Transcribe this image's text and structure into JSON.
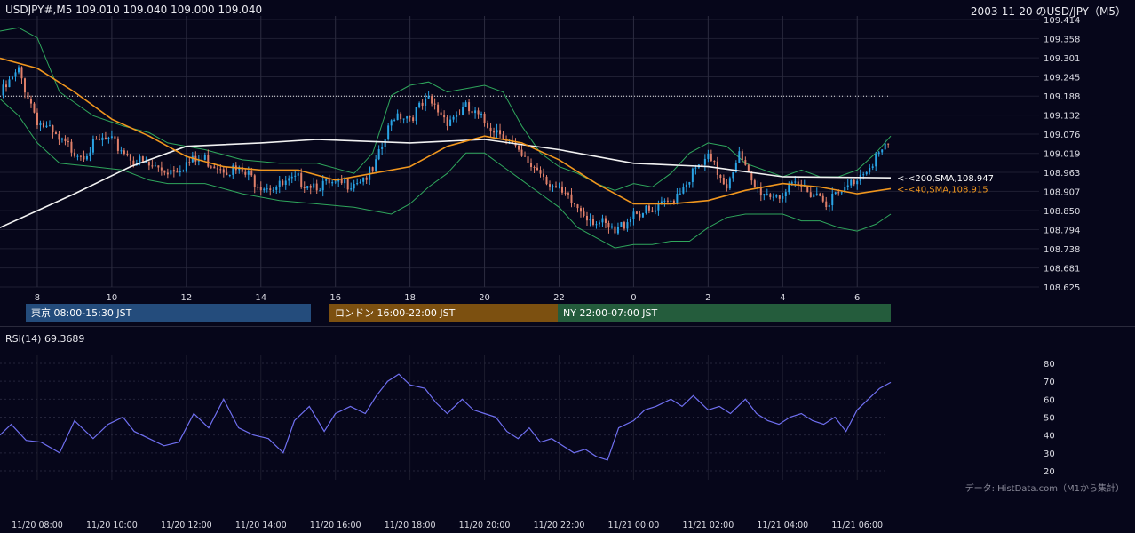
{
  "header": {
    "symbol_ohlc": "USDJPY#,M5 109.010 109.040 109.000 109.040",
    "date_title": "2003-11-20 のUSD/JPY（M5）"
  },
  "sessions": [
    {
      "label": "東京 08:00-15:30 JST",
      "color": "#244c7c"
    },
    {
      "label": "ロンドン 16:00-22:00 JST",
      "color": "#7c5010"
    },
    {
      "label": "NY 22:00-07:00 JST",
      "color": "#245c3c"
    }
  ],
  "rsi": {
    "label": "RSI(14) 69.3689"
  },
  "credit": "データ: HistData.com（M1から集計）",
  "colors": {
    "background": "#06061a",
    "up_candle": "#2aa4e6",
    "down_candle": "#e0806a",
    "sma200": "#f2f2f2",
    "sma40": "#f0961e",
    "bollinger": "#2fa65c",
    "rsi_line": "#6f6ff0",
    "grid": "#1f1f33"
  },
  "chart_data": [
    {
      "type": "candlestick",
      "title": "USDJPY#,M5 109.010 109.040 109.000 109.040",
      "y_ticks": [
        "108.625",
        "108.681",
        "108.738",
        "108.794",
        "108.850",
        "108.907",
        "108.963",
        "109.019",
        "109.076",
        "109.132",
        "109.188",
        "109.245",
        "109.301",
        "109.358",
        "109.414"
      ],
      "ylim": [
        108.625,
        109.414
      ],
      "x_ticks": [
        "8",
        "10",
        "12",
        "14",
        "16",
        "18",
        "20",
        "22",
        "0",
        "2",
        "4",
        "6"
      ],
      "x_range_hours": [
        7.0,
        30.9
      ],
      "dotted_level": 109.188,
      "overlays": [
        {
          "name": "200,SMA",
          "value": 108.947,
          "label": "<-<200,SMA,108.947"
        },
        {
          "name": "40,SMA",
          "value": 108.915,
          "label": "<-<40,SMA,108.915"
        }
      ],
      "close_path": [
        [
          7.0,
          109.19
        ],
        [
          7.5,
          109.26
        ],
        [
          8.0,
          109.12
        ],
        [
          8.6,
          109.05
        ],
        [
          9.2,
          109.02
        ],
        [
          9.8,
          109.06
        ],
        [
          10.3,
          109.03
        ],
        [
          10.6,
          109.0
        ],
        [
          11.0,
          108.98
        ],
        [
          11.5,
          108.97
        ],
        [
          12.0,
          108.99
        ],
        [
          12.5,
          109.0
        ],
        [
          13.0,
          108.98
        ],
        [
          13.5,
          108.96
        ],
        [
          14.0,
          108.93
        ],
        [
          14.5,
          108.92
        ],
        [
          15.0,
          108.94
        ],
        [
          15.5,
          108.93
        ],
        [
          16.0,
          108.92
        ],
        [
          16.5,
          108.94
        ],
        [
          17.0,
          108.96
        ],
        [
          17.3,
          109.05
        ],
        [
          17.6,
          109.14
        ],
        [
          18.0,
          109.13
        ],
        [
          18.5,
          109.17
        ],
        [
          19.0,
          109.12
        ],
        [
          19.5,
          109.15
        ],
        [
          20.0,
          109.11
        ],
        [
          20.5,
          109.08
        ],
        [
          21.0,
          109.0
        ],
        [
          21.5,
          108.97
        ],
        [
          22.0,
          108.9
        ],
        [
          22.5,
          108.86
        ],
        [
          23.0,
          108.82
        ],
        [
          23.5,
          108.78
        ],
        [
          24.0,
          108.85
        ],
        [
          24.5,
          108.84
        ],
        [
          25.0,
          108.88
        ],
        [
          25.5,
          108.95
        ],
        [
          26.0,
          109.0
        ],
        [
          26.5,
          108.93
        ],
        [
          26.8,
          109.02
        ],
        [
          27.2,
          108.92
        ],
        [
          27.6,
          108.9
        ],
        [
          28.0,
          108.9
        ],
        [
          28.4,
          108.92
        ],
        [
          28.8,
          108.91
        ],
        [
          29.2,
          108.88
        ],
        [
          29.6,
          108.9
        ],
        [
          30.0,
          108.95
        ],
        [
          30.5,
          109.01
        ],
        [
          30.9,
          109.04
        ]
      ],
      "sma200_path": [
        [
          7.0,
          108.8
        ],
        [
          9.0,
          108.9
        ],
        [
          10.5,
          108.98
        ],
        [
          12.0,
          109.04
        ],
        [
          14.0,
          109.05
        ],
        [
          15.5,
          109.06
        ],
        [
          18.0,
          109.05
        ],
        [
          20.0,
          109.06
        ],
        [
          22.0,
          109.03
        ],
        [
          24.0,
          108.99
        ],
        [
          26.0,
          108.98
        ],
        [
          28.0,
          108.95
        ],
        [
          30.9,
          108.947
        ]
      ],
      "sma40_path": [
        [
          7.0,
          109.3
        ],
        [
          8.0,
          109.27
        ],
        [
          9.0,
          109.2
        ],
        [
          10.0,
          109.12
        ],
        [
          11.0,
          109.07
        ],
        [
          12.0,
          109.01
        ],
        [
          13.0,
          108.98
        ],
        [
          14.0,
          108.97
        ],
        [
          15.0,
          108.97
        ],
        [
          16.0,
          108.94
        ],
        [
          17.0,
          108.96
        ],
        [
          18.0,
          108.98
        ],
        [
          19.0,
          109.04
        ],
        [
          20.0,
          109.07
        ],
        [
          21.0,
          109.05
        ],
        [
          22.0,
          109.0
        ],
        [
          23.0,
          108.93
        ],
        [
          24.0,
          108.87
        ],
        [
          25.0,
          108.87
        ],
        [
          26.0,
          108.88
        ],
        [
          27.0,
          108.91
        ],
        [
          28.0,
          108.93
        ],
        [
          29.0,
          108.92
        ],
        [
          30.0,
          108.9
        ],
        [
          30.9,
          108.915
        ]
      ],
      "bb_upper_path": [
        [
          7.0,
          109.38
        ],
        [
          7.5,
          109.39
        ],
        [
          8.0,
          109.36
        ],
        [
          8.6,
          109.2
        ],
        [
          9.5,
          109.13
        ],
        [
          10.3,
          109.1
        ],
        [
          11.0,
          109.08
        ],
        [
          11.5,
          109.05
        ],
        [
          12.5,
          109.03
        ],
        [
          13.5,
          109.0
        ],
        [
          14.5,
          108.99
        ],
        [
          15.5,
          108.99
        ],
        [
          16.5,
          108.96
        ],
        [
          17.0,
          109.02
        ],
        [
          17.5,
          109.19
        ],
        [
          18.0,
          109.22
        ],
        [
          18.5,
          109.23
        ],
        [
          19.0,
          109.2
        ],
        [
          19.5,
          109.21
        ],
        [
          20.0,
          109.22
        ],
        [
          20.5,
          109.2
        ],
        [
          21.0,
          109.1
        ],
        [
          21.5,
          109.02
        ],
        [
          22.0,
          108.98
        ],
        [
          22.5,
          108.96
        ],
        [
          23.0,
          108.93
        ],
        [
          23.5,
          108.91
        ],
        [
          24.0,
          108.93
        ],
        [
          24.5,
          108.92
        ],
        [
          25.0,
          108.96
        ],
        [
          25.5,
          109.02
        ],
        [
          26.0,
          109.05
        ],
        [
          26.5,
          109.04
        ],
        [
          27.0,
          108.99
        ],
        [
          27.5,
          108.97
        ],
        [
          28.0,
          108.95
        ],
        [
          28.5,
          108.97
        ],
        [
          29.0,
          108.95
        ],
        [
          29.5,
          108.95
        ],
        [
          30.0,
          108.97
        ],
        [
          30.5,
          109.02
        ],
        [
          30.9,
          109.07
        ]
      ],
      "bb_lower_path": [
        [
          7.0,
          109.18
        ],
        [
          7.5,
          109.13
        ],
        [
          8.0,
          109.05
        ],
        [
          8.6,
          108.99
        ],
        [
          9.5,
          108.98
        ],
        [
          10.3,
          108.97
        ],
        [
          11.0,
          108.94
        ],
        [
          11.5,
          108.93
        ],
        [
          12.5,
          108.93
        ],
        [
          13.5,
          108.9
        ],
        [
          14.5,
          108.88
        ],
        [
          15.5,
          108.87
        ],
        [
          16.5,
          108.86
        ],
        [
          17.0,
          108.85
        ],
        [
          17.5,
          108.84
        ],
        [
          18.0,
          108.87
        ],
        [
          18.5,
          108.92
        ],
        [
          19.0,
          108.96
        ],
        [
          19.5,
          109.02
        ],
        [
          20.0,
          109.02
        ],
        [
          20.5,
          108.98
        ],
        [
          21.0,
          108.94
        ],
        [
          21.5,
          108.9
        ],
        [
          22.0,
          108.86
        ],
        [
          22.5,
          108.8
        ],
        [
          23.0,
          108.77
        ],
        [
          23.5,
          108.74
        ],
        [
          24.0,
          108.75
        ],
        [
          24.5,
          108.75
        ],
        [
          25.0,
          108.76
        ],
        [
          25.5,
          108.76
        ],
        [
          26.0,
          108.8
        ],
        [
          26.5,
          108.83
        ],
        [
          27.0,
          108.84
        ],
        [
          27.5,
          108.84
        ],
        [
          28.0,
          108.84
        ],
        [
          28.5,
          108.82
        ],
        [
          29.0,
          108.82
        ],
        [
          29.5,
          108.8
        ],
        [
          30.0,
          108.79
        ],
        [
          30.5,
          108.81
        ],
        [
          30.9,
          108.84
        ]
      ]
    },
    {
      "type": "line",
      "title": "RSI(14) 69.3689",
      "y_ticks": [
        20,
        30,
        40,
        50,
        60,
        70,
        80
      ],
      "ylim": [
        20,
        80
      ],
      "x_ticks": [
        "11/20 08:00",
        "11/20 10:00",
        "11/20 12:00",
        "11/20 14:00",
        "11/20 16:00",
        "11/20 18:00",
        "11/20 20:00",
        "11/20 22:00",
        "11/21 00:00",
        "11/21 02:00",
        "11/21 04:00",
        "11/21 06:00"
      ],
      "series": [
        {
          "points": [
            [
              7.0,
              40
            ],
            [
              7.3,
              46
            ],
            [
              7.7,
              37
            ],
            [
              8.1,
              36
            ],
            [
              8.6,
              30
            ],
            [
              9.0,
              48
            ],
            [
              9.5,
              38
            ],
            [
              9.9,
              46
            ],
            [
              10.3,
              50
            ],
            [
              10.6,
              42
            ],
            [
              11.0,
              38
            ],
            [
              11.4,
              34
            ],
            [
              11.8,
              36
            ],
            [
              12.2,
              52
            ],
            [
              12.6,
              44
            ],
            [
              13.0,
              60
            ],
            [
              13.4,
              44
            ],
            [
              13.8,
              40
            ],
            [
              14.2,
              38
            ],
            [
              14.6,
              30
            ],
            [
              14.9,
              48
            ],
            [
              15.3,
              56
            ],
            [
              15.7,
              42
            ],
            [
              16.0,
              52
            ],
            [
              16.4,
              56
            ],
            [
              16.8,
              52
            ],
            [
              17.1,
              62
            ],
            [
              17.4,
              70
            ],
            [
              17.7,
              74
            ],
            [
              18.0,
              68
            ],
            [
              18.4,
              66
            ],
            [
              18.7,
              58
            ],
            [
              19.0,
              52
            ],
            [
              19.4,
              60
            ],
            [
              19.7,
              54
            ],
            [
              20.0,
              52
            ],
            [
              20.3,
              50
            ],
            [
              20.6,
              42
            ],
            [
              20.9,
              38
            ],
            [
              21.2,
              44
            ],
            [
              21.5,
              36
            ],
            [
              21.8,
              38
            ],
            [
              22.1,
              34
            ],
            [
              22.4,
              30
            ],
            [
              22.7,
              32
            ],
            [
              23.0,
              28
            ],
            [
              23.3,
              26
            ],
            [
              23.6,
              44
            ],
            [
              24.0,
              48
            ],
            [
              24.3,
              54
            ],
            [
              24.6,
              56
            ],
            [
              25.0,
              60
            ],
            [
              25.3,
              56
            ],
            [
              25.6,
              62
            ],
            [
              26.0,
              54
            ],
            [
              26.3,
              56
            ],
            [
              26.6,
              52
            ],
            [
              27.0,
              60
            ],
            [
              27.3,
              52
            ],
            [
              27.6,
              48
            ],
            [
              27.9,
              46
            ],
            [
              28.2,
              50
            ],
            [
              28.5,
              52
            ],
            [
              28.8,
              48
            ],
            [
              29.1,
              46
            ],
            [
              29.4,
              50
            ],
            [
              29.7,
              42
            ],
            [
              30.0,
              54
            ],
            [
              30.3,
              60
            ],
            [
              30.6,
              66
            ],
            [
              30.9,
              69.37
            ]
          ]
        }
      ]
    }
  ]
}
